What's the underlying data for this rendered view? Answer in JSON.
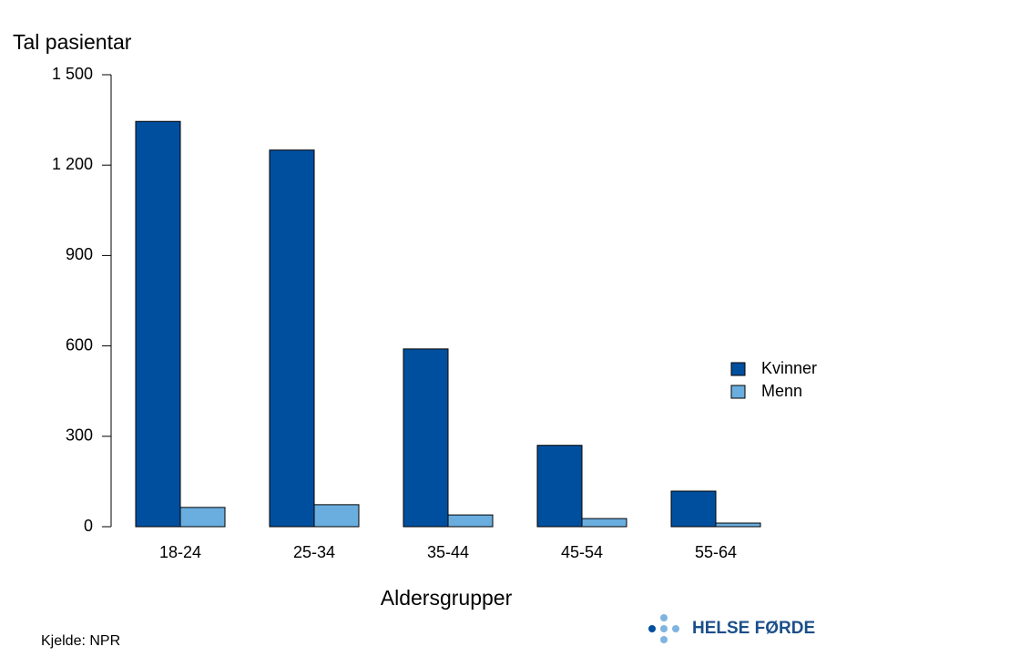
{
  "chart_data": {
    "type": "bar",
    "y_label": "Tal pasientar",
    "x_label": "Aldersgrupper",
    "categories": [
      "18-24",
      "25-34",
      "35-44",
      "45-54",
      "55-64"
    ],
    "series": [
      {
        "name": "Kvinner",
        "color": "#004f9e",
        "values": [
          1345,
          1250,
          590,
          270,
          118
        ]
      },
      {
        "name": "Menn",
        "color": "#6aaee0",
        "values": [
          64,
          73,
          39,
          27,
          12
        ]
      }
    ],
    "ylim": [
      0,
      1500
    ],
    "yticks": [
      0,
      300,
      600,
      900,
      {
        "value": 1200,
        "label": "1 200"
      },
      {
        "value": 1500,
        "label": "1 500"
      }
    ],
    "source": "Kjelde: NPR",
    "logo_text": "HELSE FØRDE",
    "grid": false
  }
}
